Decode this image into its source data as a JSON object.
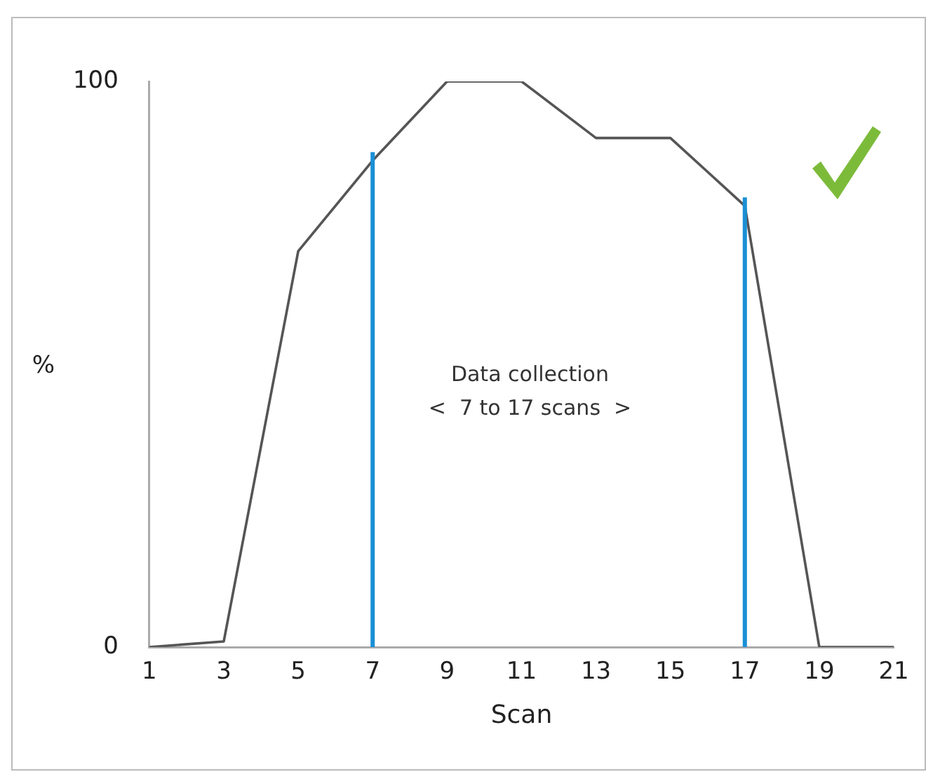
{
  "chart_data": {
    "type": "line",
    "xlabel": "Scan",
    "ylabel": "%",
    "x": [
      1,
      3,
      5,
      7,
      9,
      11,
      13,
      15,
      17,
      19,
      21
    ],
    "series": [
      {
        "color": "#555555",
        "values": [
          0,
          1,
          70,
          86,
          100,
          100,
          90,
          90,
          78,
          0,
          0
        ]
      }
    ],
    "xlim": [
      1,
      21
    ],
    "xticks": [
      1,
      3,
      5,
      7,
      9,
      11,
      13,
      15,
      17,
      19,
      21
    ],
    "ylim": [
      0,
      100
    ],
    "yticks": [
      0,
      100
    ],
    "ref_lines": [
      {
        "axis": "x",
        "value": 7,
        "color": "#1a8fd6"
      },
      {
        "axis": "x",
        "value": 17,
        "color": "#1a8fd6"
      }
    ],
    "annotations": [
      "Data collection\n<  7 to 17 scans  >"
    ],
    "grid": false,
    "legend": false,
    "marker": "none"
  }
}
